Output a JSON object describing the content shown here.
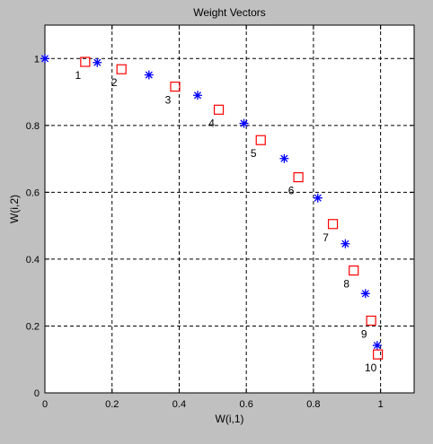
{
  "chart_data": {
    "type": "scatter",
    "title": "Weight Vectors",
    "xlabel": "W(i,1)",
    "ylabel": "W(i,2)",
    "xlim": [
      0,
      1.1
    ],
    "ylim": [
      0,
      1.1
    ],
    "x_ticks": [
      0,
      0.2,
      0.4,
      0.6,
      0.8,
      1
    ],
    "x_tick_labels": [
      "0",
      "0.2",
      "0.4",
      "0.6",
      "0.8",
      "1"
    ],
    "y_ticks": [
      0,
      0.2,
      0.4,
      0.6,
      0.8,
      1
    ],
    "y_tick_labels": [
      "0",
      "0.2",
      "0.4",
      "0.6",
      "0.8",
      "1"
    ],
    "grid": true,
    "series": [
      {
        "marker": "asterisk",
        "color": "#0000ff",
        "points": [
          {
            "x": 0.0,
            "y": 1.0
          },
          {
            "x": 0.156,
            "y": 0.988
          },
          {
            "x": 0.31,
            "y": 0.951
          },
          {
            "x": 0.455,
            "y": 0.89
          },
          {
            "x": 0.593,
            "y": 0.806
          },
          {
            "x": 0.713,
            "y": 0.701
          },
          {
            "x": 0.813,
            "y": 0.583
          },
          {
            "x": 0.895,
            "y": 0.446
          },
          {
            "x": 0.955,
            "y": 0.297
          },
          {
            "x": 0.99,
            "y": 0.142
          }
        ]
      },
      {
        "marker": "square",
        "color": "#ff0000",
        "points": [
          {
            "x": 0.12,
            "y": 0.99,
            "label": "1"
          },
          {
            "x": 0.228,
            "y": 0.968,
            "label": "2"
          },
          {
            "x": 0.388,
            "y": 0.916,
            "label": "3"
          },
          {
            "x": 0.518,
            "y": 0.847,
            "label": "4"
          },
          {
            "x": 0.643,
            "y": 0.756,
            "label": "5"
          },
          {
            "x": 0.755,
            "y": 0.645,
            "label": "6"
          },
          {
            "x": 0.858,
            "y": 0.505,
            "label": "7"
          },
          {
            "x": 0.92,
            "y": 0.366,
            "label": "8"
          },
          {
            "x": 0.972,
            "y": 0.216,
            "label": "9"
          },
          {
            "x": 0.992,
            "y": 0.115,
            "label": "10"
          }
        ]
      }
    ]
  }
}
